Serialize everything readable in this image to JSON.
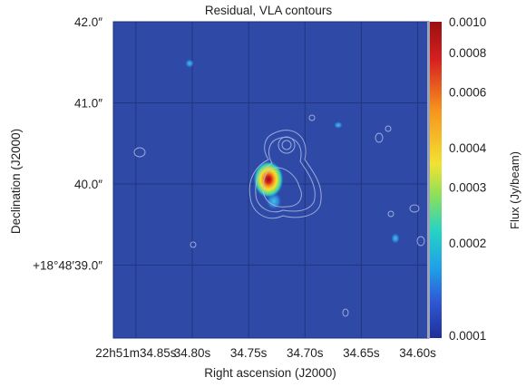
{
  "chart_data": {
    "type": "heatmap",
    "title": "Residual, VLA contours",
    "xlabel": "Right ascension (J2000)",
    "ylabel": "Declination (J2000)",
    "x_ticks": [
      "22h51m34.85s",
      "34.80s",
      "34.75s",
      "34.70s",
      "34.65s",
      "34.60s"
    ],
    "y_ticks": [
      "42.0″",
      "41.0″",
      "40.0″",
      "+18°48′39.0″"
    ],
    "xlim_seconds": [
      34.87,
      34.59
    ],
    "ylim_arcsec": [
      38.1,
      42.0
    ],
    "x_tick_values": [
      34.85,
      34.8,
      34.75,
      34.7,
      34.65,
      34.6
    ],
    "y_tick_values": [
      42.0,
      41.0,
      40.0,
      39.0
    ],
    "colorbar": {
      "label": "Flux (Jy/beam)",
      "scale": "log",
      "range": [
        0.0001,
        0.001
      ],
      "ticks": [
        "0.0010",
        "0.0008",
        "0.0006",
        "0.0004",
        "0.0003",
        "0.0002",
        "0.0001"
      ],
      "tick_values": [
        0.001,
        0.0008,
        0.0006,
        0.0004,
        0.0003,
        0.0002,
        0.0001
      ]
    },
    "sources": [
      {
        "ra_s": 34.745,
        "dec_arcsec": 40.1,
        "peak_flux": 0.001
      },
      {
        "ra_s": 34.743,
        "dec_arcsec": 39.85,
        "peak_flux": 0.00025
      }
    ],
    "contours": "VLA"
  },
  "colors": {
    "background_field": "#2e4aa6",
    "grid": "#1d2f78",
    "colormap": [
      "#1f2f9a",
      "#2f5ad6",
      "#1ea0e8",
      "#27d3c4",
      "#8be05a",
      "#f2e232",
      "#f7941d",
      "#d62020",
      "#8a0f0f"
    ]
  }
}
